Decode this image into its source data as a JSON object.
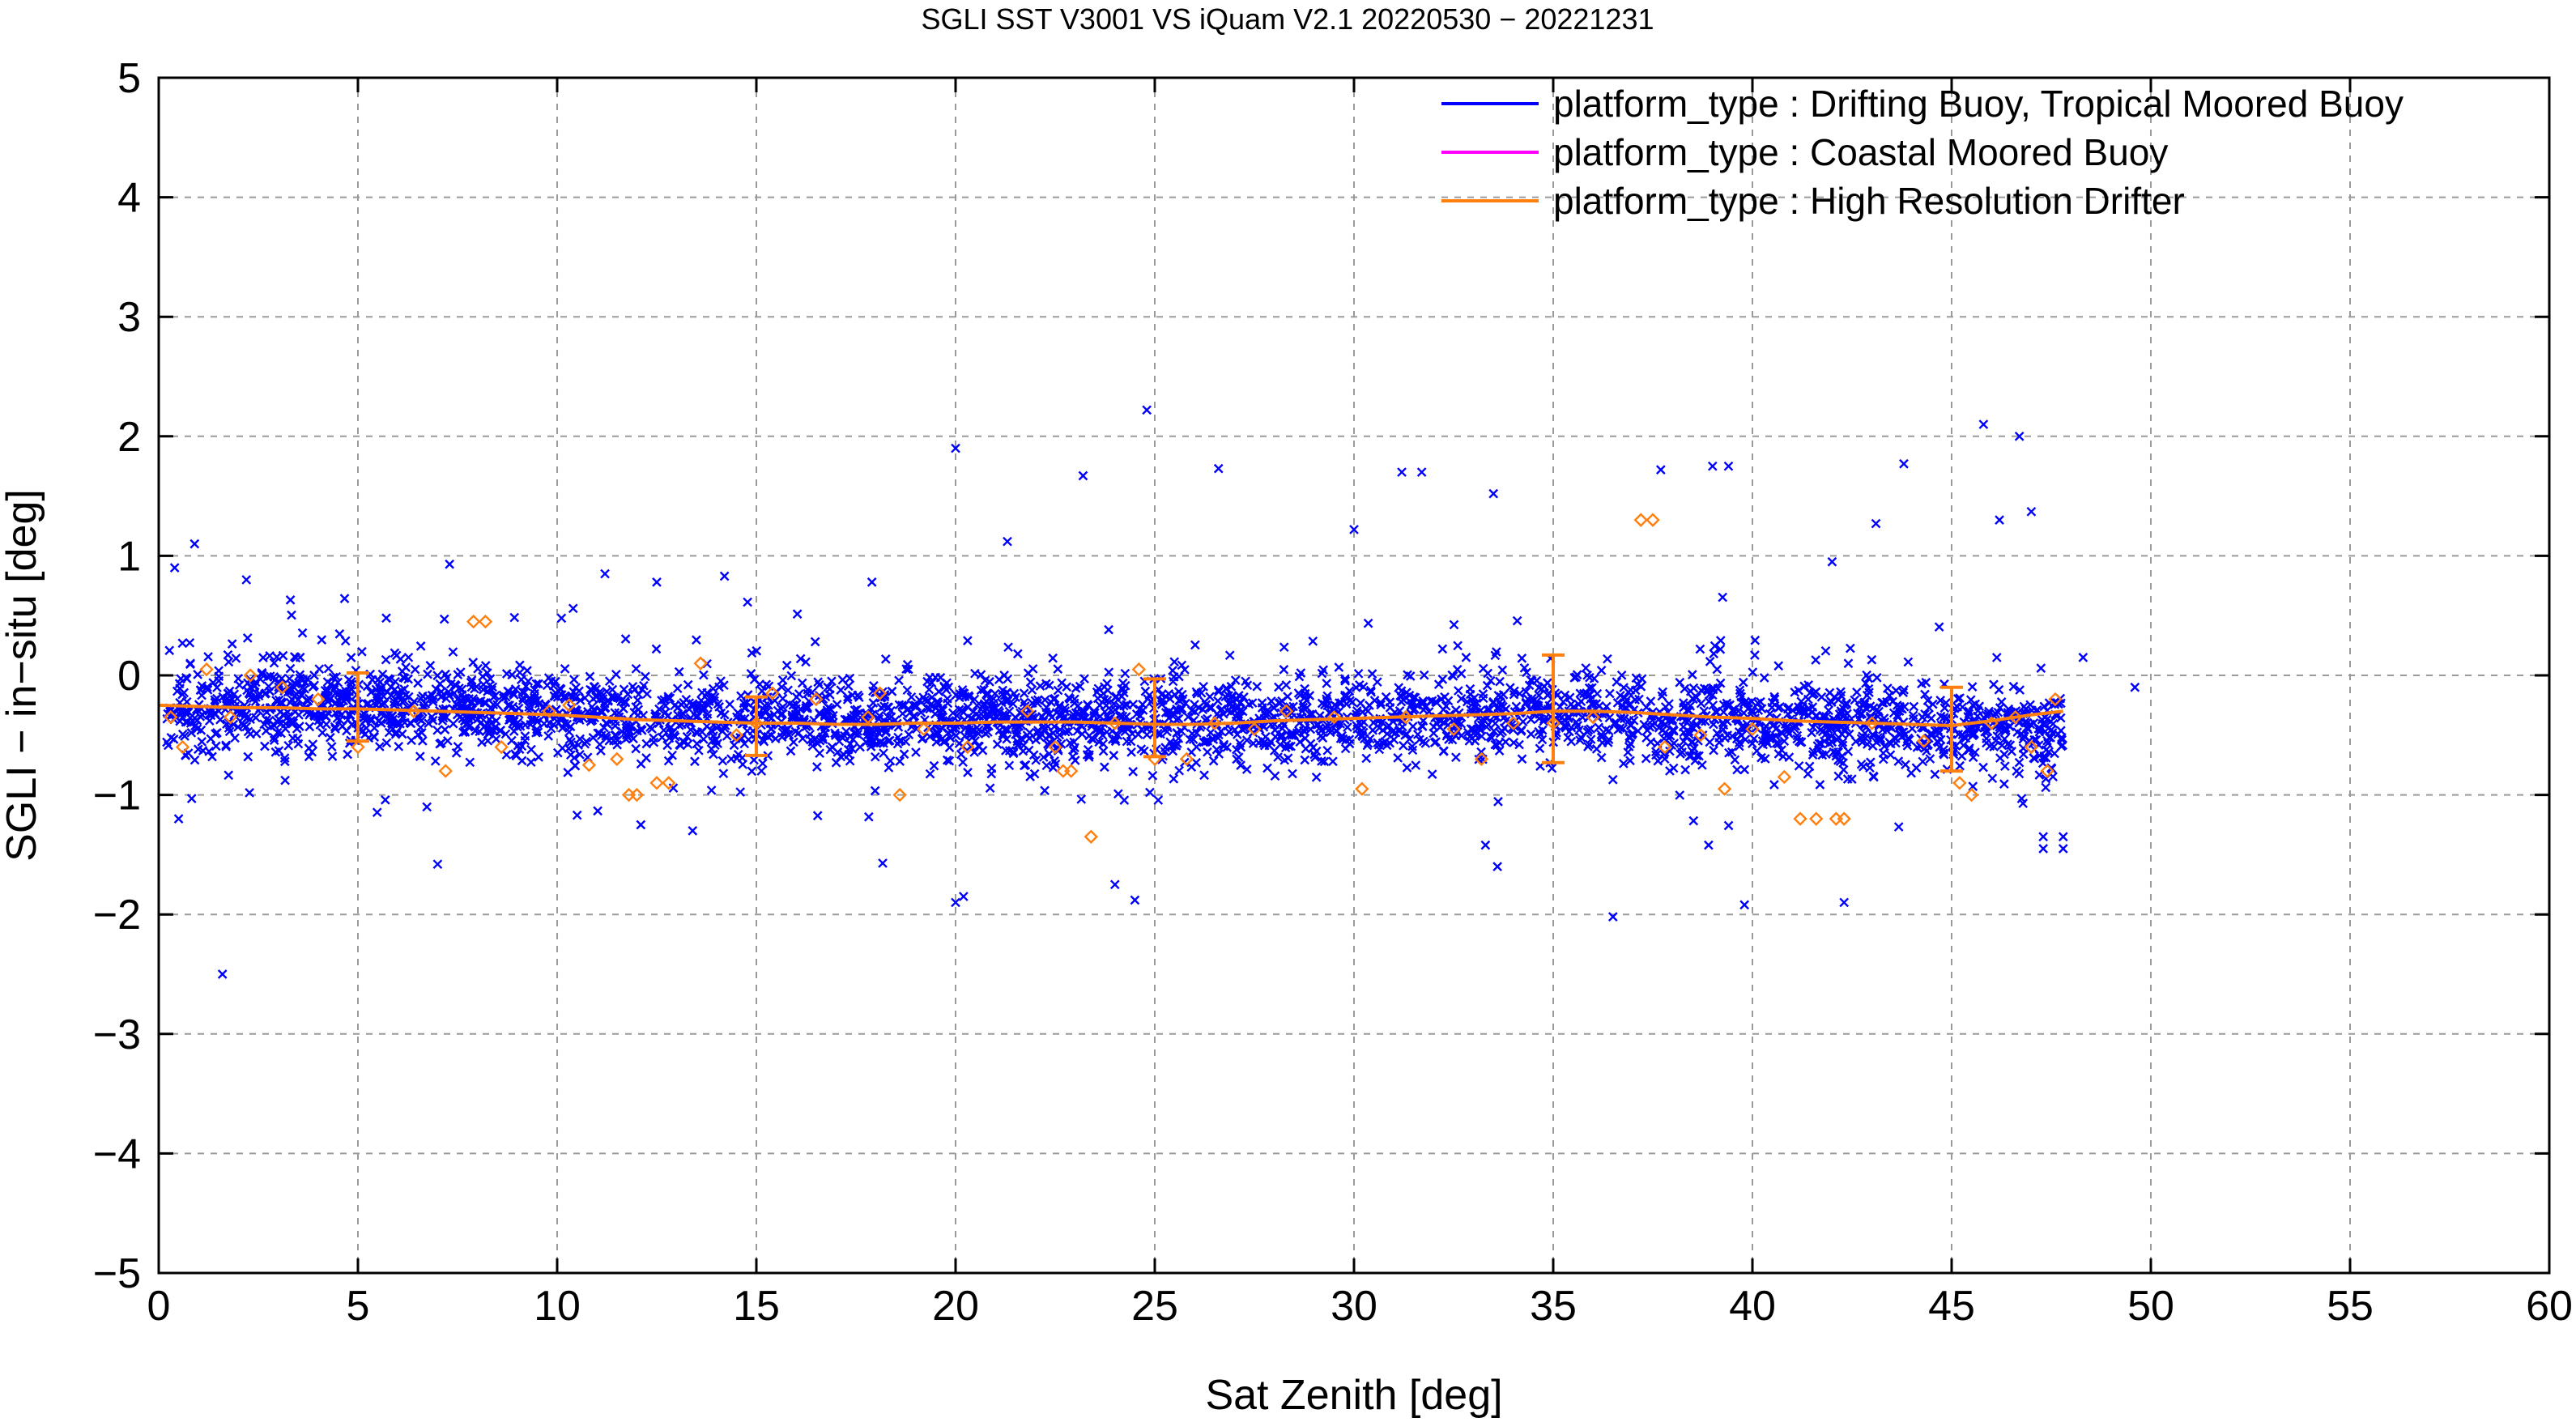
{
  "chart_data": {
    "type": "scatter",
    "title": "SGLI SST V3001 VS iQuam V2.1 20220530 − 20221231",
    "xlabel": "Sat Zenith [deg]",
    "ylabel": "SGLI − in−situ [deg]",
    "xlim": [
      0,
      60
    ],
    "ylim": [
      -5,
      5
    ],
    "xticks": [
      "0",
      "5",
      "10",
      "15",
      "20",
      "25",
      "30",
      "35",
      "40",
      "45",
      "50",
      "55",
      "60"
    ],
    "yticks": [
      "−5",
      "−4",
      "−3",
      "−2",
      "−1",
      "0",
      "1",
      "2",
      "3",
      "4",
      "5"
    ],
    "grid": true,
    "legend_position": "top-right",
    "series": [
      {
        "name": "platform_type : Drifting Buoy, Tropical Moored Buoy",
        "color": "#0000ff",
        "marker": "x",
        "scatter_model": {
          "note_free": true,
          "x_range": [
            0.2,
            47.8
          ],
          "center_by_x": [
            [
              0,
              -0.3
            ],
            [
              5,
              -0.25
            ],
            [
              10,
              -0.3
            ],
            [
              15,
              -0.38
            ],
            [
              20,
              -0.38
            ],
            [
              25,
              -0.4
            ],
            [
              30,
              -0.35
            ],
            [
              35,
              -0.3
            ],
            [
              40,
              -0.4
            ],
            [
              45,
              -0.45
            ],
            [
              48,
              -0.5
            ]
          ],
          "spread": 0.18,
          "count": 3400
        },
        "outliers": [
          [
            0.4,
            0.9
          ],
          [
            0.9,
            1.1
          ],
          [
            1.6,
            -2.5
          ],
          [
            2.2,
            0.8
          ],
          [
            0.5,
            -1.2
          ],
          [
            7.0,
            -1.58
          ],
          [
            7.3,
            0.93
          ],
          [
            11.2,
            0.85
          ],
          [
            12.5,
            0.78
          ],
          [
            14.2,
            0.83
          ],
          [
            17.9,
            0.78
          ],
          [
            20.0,
            1.9
          ],
          [
            20.0,
            -1.9
          ],
          [
            20.2,
            -1.85
          ],
          [
            21.3,
            1.12
          ],
          [
            23.2,
            1.67
          ],
          [
            24.0,
            -1.75
          ],
          [
            24.5,
            -1.88
          ],
          [
            24.8,
            2.22
          ],
          [
            26.6,
            1.73
          ],
          [
            30.0,
            1.22
          ],
          [
            31.2,
            1.7
          ],
          [
            31.7,
            1.7
          ],
          [
            33.5,
            1.52
          ],
          [
            33.6,
            -1.6
          ],
          [
            33.3,
            -1.42
          ],
          [
            36.5,
            -2.02
          ],
          [
            37.7,
            1.72
          ],
          [
            39.0,
            1.75
          ],
          [
            39.4,
            1.75
          ],
          [
            39.8,
            -1.92
          ],
          [
            38.9,
            -1.42
          ],
          [
            42.3,
            -1.9
          ],
          [
            42.0,
            0.95
          ],
          [
            43.1,
            1.27
          ],
          [
            43.8,
            1.77
          ],
          [
            45.8,
            2.1
          ],
          [
            46.2,
            1.3
          ],
          [
            46.7,
            2.0
          ],
          [
            47.0,
            1.37
          ],
          [
            47.3,
            -1.35
          ],
          [
            47.8,
            -1.35
          ],
          [
            47.3,
            -1.45
          ],
          [
            47.8,
            -1.45
          ],
          [
            49.6,
            -0.1
          ],
          [
            48.3,
            0.15
          ],
          [
            13.4,
            -1.3
          ],
          [
            12.1,
            -1.25
          ]
        ]
      },
      {
        "name": "platform_type : Coastal Moored Buoy",
        "color": "#ff00ff",
        "marker": "o"
      },
      {
        "name": "platform_type : High Resolution Drifter",
        "color": "#ff7f0e",
        "marker": "diamond",
        "points": [
          [
            0.3,
            -0.35
          ],
          [
            0.6,
            -0.6
          ],
          [
            1.2,
            0.05
          ],
          [
            1.8,
            -0.35
          ],
          [
            2.3,
            0.0
          ],
          [
            3.1,
            -0.1
          ],
          [
            4.0,
            -0.2
          ],
          [
            5.0,
            -0.6
          ],
          [
            6.4,
            -0.3
          ],
          [
            7.2,
            -0.8
          ],
          [
            7.9,
            0.45
          ],
          [
            8.2,
            0.45
          ],
          [
            8.6,
            -0.6
          ],
          [
            9.8,
            -0.3
          ],
          [
            10.3,
            -0.25
          ],
          [
            10.8,
            -0.75
          ],
          [
            11.5,
            -0.7
          ],
          [
            11.8,
            -1.0
          ],
          [
            12.0,
            -1.0
          ],
          [
            12.5,
            -0.9
          ],
          [
            12.8,
            -0.9
          ],
          [
            13.6,
            0.1
          ],
          [
            14.5,
            -0.5
          ],
          [
            15.0,
            -0.4
          ],
          [
            15.4,
            -0.15
          ],
          [
            16.5,
            -0.2
          ],
          [
            17.8,
            -0.35
          ],
          [
            18.1,
            -0.15
          ],
          [
            18.6,
            -1.0
          ],
          [
            19.2,
            -0.45
          ],
          [
            20.3,
            -0.6
          ],
          [
            21.8,
            -0.3
          ],
          [
            22.5,
            -0.6
          ],
          [
            22.7,
            -0.8
          ],
          [
            22.9,
            -0.8
          ],
          [
            23.4,
            -1.35
          ],
          [
            24.0,
            -0.4
          ],
          [
            24.6,
            0.05
          ],
          [
            25.0,
            -0.7
          ],
          [
            25.8,
            -0.7
          ],
          [
            26.5,
            -0.4
          ],
          [
            27.5,
            -0.45
          ],
          [
            28.3,
            -0.3
          ],
          [
            29.5,
            -0.35
          ],
          [
            30.2,
            -0.95
          ],
          [
            31.3,
            -0.35
          ],
          [
            32.5,
            -0.45
          ],
          [
            33.2,
            -0.7
          ],
          [
            34.0,
            -0.4
          ],
          [
            35.0,
            -0.4
          ],
          [
            36.0,
            -0.35
          ],
          [
            37.2,
            1.3
          ],
          [
            37.5,
            1.3
          ],
          [
            37.8,
            -0.6
          ],
          [
            38.7,
            -0.5
          ],
          [
            39.3,
            -0.95
          ],
          [
            40.0,
            -0.45
          ],
          [
            40.8,
            -0.85
          ],
          [
            41.2,
            -1.2
          ],
          [
            41.6,
            -1.2
          ],
          [
            42.1,
            -1.2
          ],
          [
            42.3,
            -1.2
          ],
          [
            43.0,
            -0.4
          ],
          [
            44.3,
            -0.55
          ],
          [
            45.2,
            -0.9
          ],
          [
            45.5,
            -1.0
          ],
          [
            46.0,
            -0.4
          ],
          [
            46.6,
            -0.35
          ],
          [
            47.0,
            -0.6
          ],
          [
            47.4,
            -0.8
          ],
          [
            47.6,
            -0.2
          ]
        ]
      }
    ],
    "mean_line": {
      "color": "#ff7f0e",
      "x": [
        0,
        1,
        2,
        3,
        4,
        5,
        6,
        7,
        8,
        9,
        10,
        11,
        12,
        13,
        14,
        15,
        16,
        17,
        18,
        19,
        20,
        21,
        22,
        23,
        24,
        25,
        26,
        27,
        28,
        29,
        30,
        31,
        32,
        33,
        34,
        35,
        36,
        37,
        38,
        39,
        40,
        41,
        42,
        43,
        44,
        45,
        46,
        47,
        47.8
      ],
      "y": [
        -0.25,
        -0.26,
        -0.27,
        -0.27,
        -0.28,
        -0.28,
        -0.29,
        -0.3,
        -0.31,
        -0.32,
        -0.33,
        -0.35,
        -0.37,
        -0.38,
        -0.39,
        -0.4,
        -0.4,
        -0.41,
        -0.41,
        -0.4,
        -0.4,
        -0.39,
        -0.39,
        -0.39,
        -0.4,
        -0.41,
        -0.41,
        -0.4,
        -0.38,
        -0.37,
        -0.36,
        -0.35,
        -0.34,
        -0.33,
        -0.32,
        -0.3,
        -0.3,
        -0.31,
        -0.33,
        -0.35,
        -0.36,
        -0.38,
        -0.39,
        -0.4,
        -0.41,
        -0.42,
        -0.38,
        -0.33,
        -0.3
      ]
    },
    "error_bars": [
      {
        "x": 5,
        "y": -0.27,
        "low": -0.55,
        "high": 0.02
      },
      {
        "x": 15,
        "y": -0.42,
        "low": -0.67,
        "high": -0.18
      },
      {
        "x": 25,
        "y": -0.38,
        "low": -0.68,
        "high": -0.03
      },
      {
        "x": 35,
        "y": -0.28,
        "low": -0.73,
        "high": 0.17
      },
      {
        "x": 45,
        "y": -0.42,
        "low": -0.8,
        "high": -0.1
      }
    ]
  }
}
